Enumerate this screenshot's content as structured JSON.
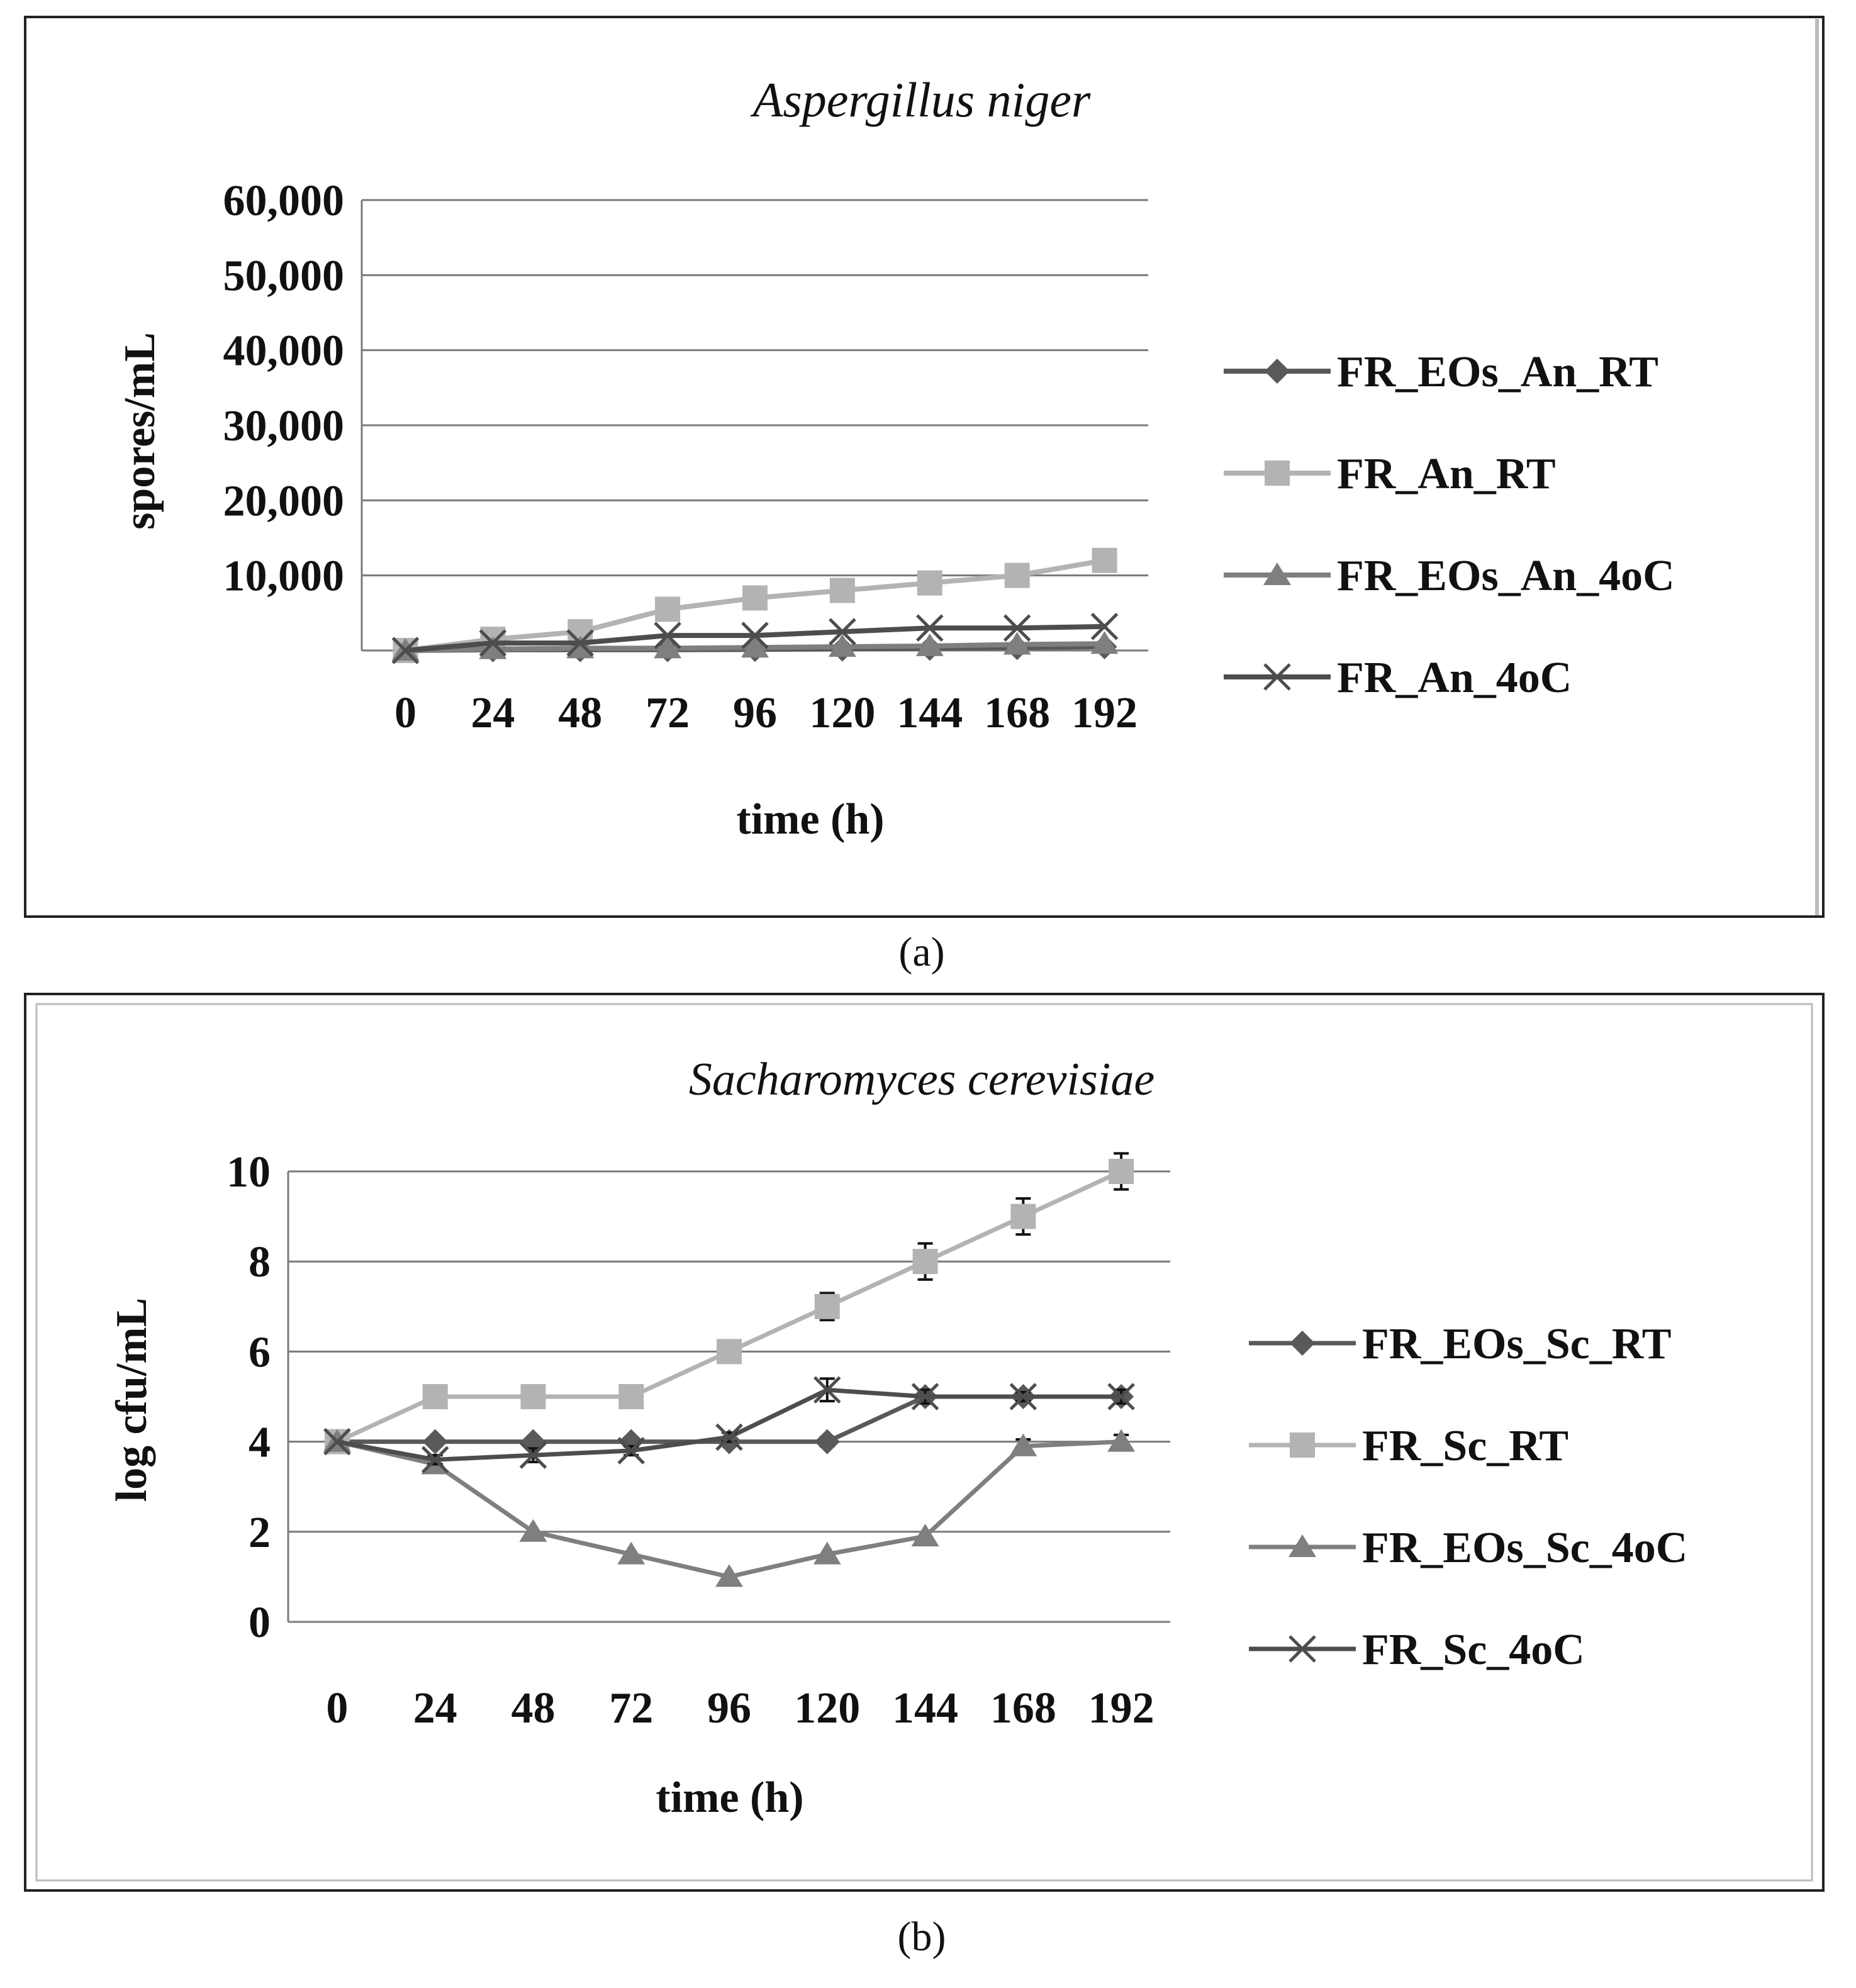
{
  "colors": {
    "series1": "#595959",
    "series2": "#b3b3b3",
    "series3": "#7f7f7f",
    "series4": "#4d4d4d",
    "grid": "#7a7a7a",
    "frame": "#222222",
    "text": "#111111"
  },
  "chart_data": [
    {
      "type": "line",
      "panel_label": "(a)",
      "title": "Aspergillus niger",
      "xlabel": "time (h)",
      "ylabel": "spores/mL",
      "categories": [
        "0",
        "24",
        "48",
        "72",
        "96",
        "120",
        "144",
        "168",
        "192"
      ],
      "y_ticks": [
        "",
        "10,000",
        "20,000",
        "30,000",
        "40,000",
        "50,000",
        "60,000"
      ],
      "ylim": [
        0,
        60000
      ],
      "grid": true,
      "legend": "right",
      "series": [
        {
          "name": "FR_EOs_An_RT",
          "marker": "diamond",
          "values": [
            0,
            100,
            100,
            100,
            150,
            200,
            300,
            400,
            500
          ]
        },
        {
          "name": "FR_An_RT",
          "marker": "square",
          "values": [
            0,
            1500,
            2500,
            5500,
            7000,
            8000,
            9000,
            10000,
            12000
          ]
        },
        {
          "name": "FR_EOs_An_4oC",
          "marker": "triangle",
          "values": [
            0,
            200,
            300,
            300,
            400,
            500,
            600,
            800,
            900
          ]
        },
        {
          "name": "FR_An_4oC",
          "marker": "x",
          "values": [
            0,
            1000,
            1000,
            2000,
            2000,
            2500,
            3000,
            3000,
            3200
          ]
        }
      ]
    },
    {
      "type": "line",
      "panel_label": "(b)",
      "title": "Sacharomyces cerevisiae",
      "xlabel": "time (h)",
      "ylabel": "log cfu/mL",
      "categories": [
        "0",
        "24",
        "48",
        "72",
        "96",
        "120",
        "144",
        "168",
        "192"
      ],
      "y_ticks": [
        "0",
        "2",
        "4",
        "6",
        "8",
        "10"
      ],
      "ylim": [
        0,
        10
      ],
      "grid": true,
      "legend": "right",
      "series": [
        {
          "name": "FR_EOs_Sc_RT",
          "marker": "diamond",
          "values": [
            4,
            4,
            4,
            4,
            4,
            4,
            5,
            5,
            5
          ],
          "errors": [
            0,
            0,
            0,
            0,
            0,
            0.1,
            0,
            0,
            0
          ]
        },
        {
          "name": "FR_Sc_RT",
          "marker": "square",
          "values": [
            4,
            5,
            5,
            5,
            6,
            7,
            8,
            9,
            10
          ],
          "errors": [
            0,
            0,
            0,
            0,
            0.1,
            0.3,
            0.4,
            0.4,
            0.4
          ]
        },
        {
          "name": "FR_EOs_Sc_4oC",
          "marker": "triangle",
          "values": [
            4,
            3.5,
            2,
            1.5,
            1,
            1.5,
            1.9,
            3.9,
            4
          ],
          "errors": [
            0,
            0,
            0,
            0,
            0,
            0,
            0,
            0.15,
            0.15
          ]
        },
        {
          "name": "FR_Sc_4oC",
          "marker": "x",
          "values": [
            4,
            3.6,
            3.7,
            3.8,
            4.1,
            5.15,
            5,
            5,
            5
          ],
          "errors": [
            0,
            0.1,
            0.15,
            0.1,
            0.1,
            0.25,
            0.15,
            0.1,
            0.15
          ]
        }
      ]
    }
  ]
}
